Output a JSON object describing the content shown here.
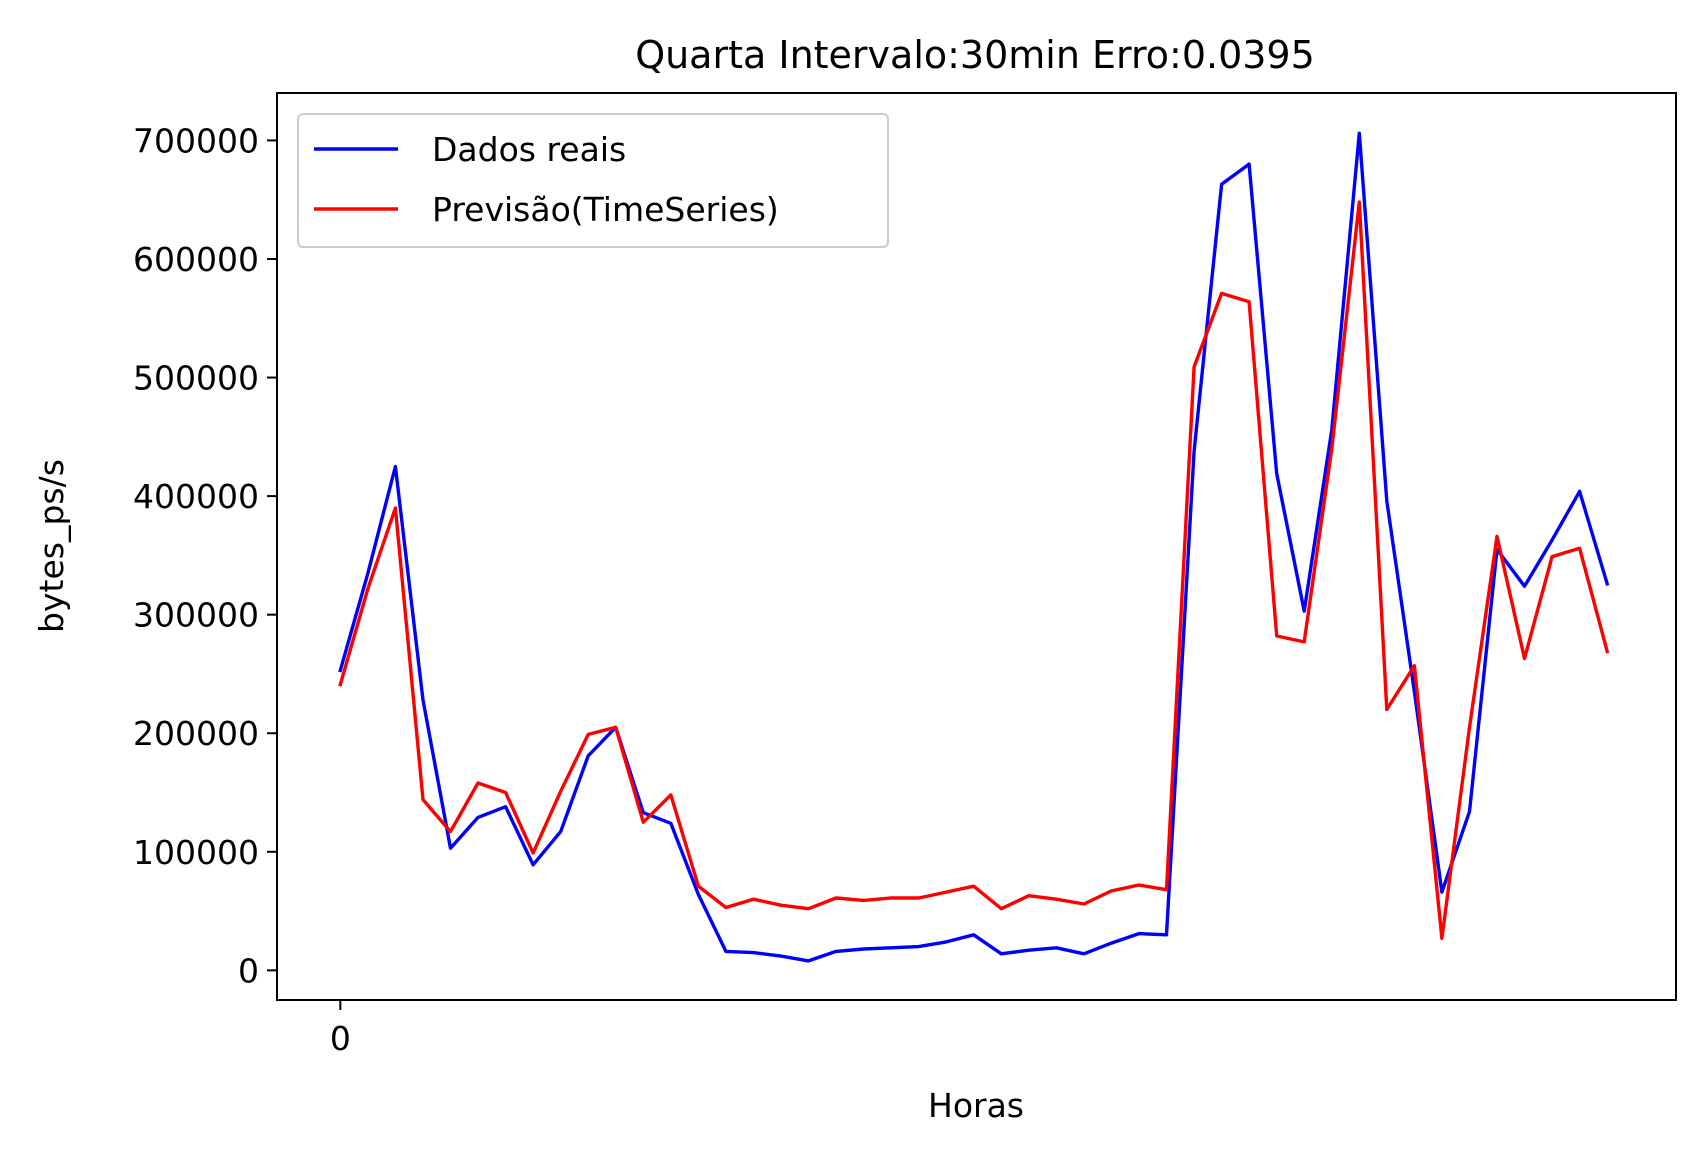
{
  "chart_data": {
    "type": "line",
    "title": "Quarta Intervalo:30min Erro:0.0395",
    "xlabel": "Horas",
    "ylabel": "bytes_ps/s",
    "x_ticks": [
      0
    ],
    "x_tick_labels": [
      "0"
    ],
    "y_ticks": [
      0,
      100000,
      200000,
      300000,
      400000,
      500000,
      600000,
      700000
    ],
    "y_tick_labels": [
      "0",
      "100000",
      "200000",
      "300000",
      "400000",
      "500000",
      "600000",
      "700000"
    ],
    "xlim": [
      -2.3,
      48.5
    ],
    "ylim": [
      -25000,
      740000
    ],
    "legend_position": "upper left",
    "grid": false,
    "series": [
      {
        "name": "Dados reais",
        "color": "#0000ff",
        "values": [
          253000,
          335000,
          425000,
          228000,
          103000,
          129000,
          138000,
          89000,
          117000,
          181000,
          205000,
          133000,
          124000,
          64000,
          16000,
          15000,
          12000,
          8000,
          16000,
          18000,
          19000,
          20000,
          24000,
          30000,
          14000,
          17000,
          19000,
          14000,
          23000,
          31000,
          30000,
          438000,
          663000,
          680000,
          419000,
          303000,
          456000,
          706000,
          396000,
          235000,
          66000,
          134000,
          355000,
          324000,
          363000,
          404000,
          326000
        ]
      },
      {
        "name": "Previsão(TimeSeries)",
        "color": "#ff0000",
        "values": [
          241000,
          322000,
          390000,
          144000,
          117000,
          158000,
          150000,
          99000,
          151000,
          199000,
          205000,
          125000,
          148000,
          71000,
          53000,
          60000,
          55000,
          52000,
          61000,
          59000,
          61000,
          61000,
          66000,
          71000,
          52000,
          63000,
          60000,
          56000,
          67000,
          72000,
          68000,
          509000,
          571000,
          564000,
          282000,
          277000,
          440000,
          648000,
          220000,
          257000,
          27000,
          205000,
          366000,
          263000,
          349000,
          356000,
          269000
        ]
      }
    ]
  }
}
